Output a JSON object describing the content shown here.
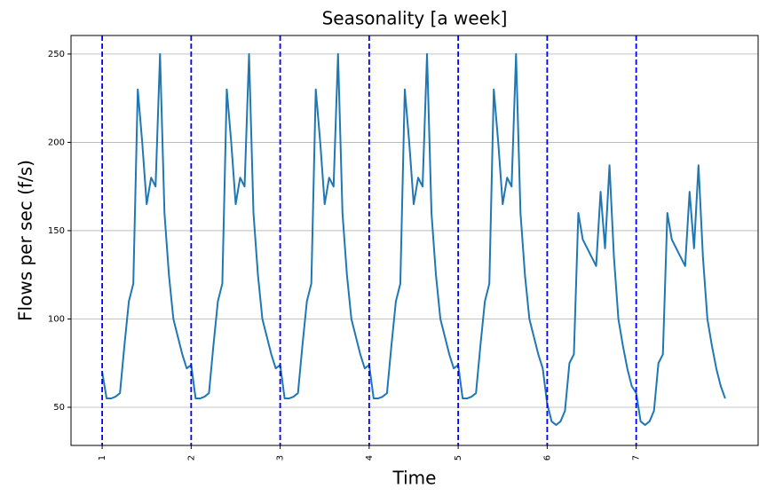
{
  "chart_data": {
    "type": "line",
    "title": "Seasonality [a week]",
    "x_label": "Time",
    "y_label": "Flows per sec (f/s)",
    "x": [
      1,
      1.05,
      1.1,
      1.15,
      1.2,
      1.25,
      1.3,
      1.35,
      1.4,
      1.45,
      1.5,
      1.55,
      1.6,
      1.65,
      1.7,
      1.75,
      1.8,
      1.85,
      1.9,
      1.95,
      2,
      2.05,
      2.1,
      2.15,
      2.2,
      2.25,
      2.3,
      2.35,
      2.4,
      2.45,
      2.5,
      2.55,
      2.6,
      2.65,
      2.7,
      2.75,
      2.8,
      2.85,
      2.9,
      2.95,
      3,
      3.05,
      3.1,
      3.15,
      3.2,
      3.25,
      3.3,
      3.35,
      3.4,
      3.45,
      3.5,
      3.55,
      3.6,
      3.65,
      3.7,
      3.75,
      3.8,
      3.85,
      3.9,
      3.95,
      4,
      4.05,
      4.1,
      4.15,
      4.2,
      4.25,
      4.3,
      4.35,
      4.4,
      4.45,
      4.5,
      4.55,
      4.6,
      4.65,
      4.7,
      4.75,
      4.8,
      4.85,
      4.9,
      4.95,
      5,
      5.05,
      5.1,
      5.15,
      5.2,
      5.25,
      5.3,
      5.35,
      5.4,
      5.45,
      5.5,
      5.55,
      5.6,
      5.65,
      5.7,
      5.75,
      5.8,
      5.85,
      5.9,
      5.95,
      6,
      6.05,
      6.1,
      6.15,
      6.2,
      6.25,
      6.3,
      6.35,
      6.4,
      6.45,
      6.5,
      6.55,
      6.6,
      6.65,
      6.7,
      6.75,
      6.8,
      6.85,
      6.9,
      6.95,
      7,
      7.05,
      7.1,
      7.15,
      7.2,
      7.25,
      7.3,
      7.35,
      7.4,
      7.45,
      7.5,
      7.55,
      7.6,
      7.65,
      7.7,
      7.75,
      7.8,
      7.85,
      7.9,
      7.95,
      8
    ],
    "values": [
      70,
      55,
      55,
      56,
      58,
      85,
      110,
      120,
      230,
      200,
      165,
      180,
      175,
      250,
      160,
      125,
      100,
      90,
      80,
      72,
      74,
      55,
      55,
      56,
      58,
      85,
      110,
      120,
      230,
      200,
      165,
      180,
      175,
      250,
      160,
      125,
      100,
      90,
      80,
      72,
      74,
      55,
      55,
      56,
      58,
      85,
      110,
      120,
      230,
      200,
      165,
      180,
      175,
      250,
      160,
      125,
      100,
      90,
      80,
      72,
      74,
      55,
      55,
      56,
      58,
      85,
      110,
      120,
      230,
      200,
      165,
      180,
      175,
      250,
      160,
      125,
      100,
      90,
      80,
      72,
      74,
      55,
      55,
      56,
      58,
      85,
      110,
      120,
      230,
      200,
      165,
      180,
      175,
      250,
      160,
      125,
      100,
      90,
      80,
      72,
      52,
      42,
      40,
      42,
      48,
      75,
      80,
      160,
      145,
      140,
      135,
      130,
      172,
      140,
      187,
      135,
      100,
      85,
      72,
      62,
      58,
      42,
      40,
      42,
      48,
      75,
      80,
      160,
      145,
      140,
      135,
      130,
      172,
      140,
      187,
      135,
      100,
      85,
      72,
      62,
      55
    ],
    "color": "#1f77b4",
    "vlines": [
      1,
      2,
      3,
      4,
      5,
      6,
      7
    ],
    "vline_color": "#0000ff",
    "xlim": [
      0.65,
      8.37
    ],
    "ylim": [
      28.4,
      260.5
    ],
    "xticks": [
      1,
      2,
      3,
      4,
      5,
      6,
      7
    ],
    "yticks": [
      50,
      100,
      150,
      200,
      250
    ],
    "grid": true
  }
}
